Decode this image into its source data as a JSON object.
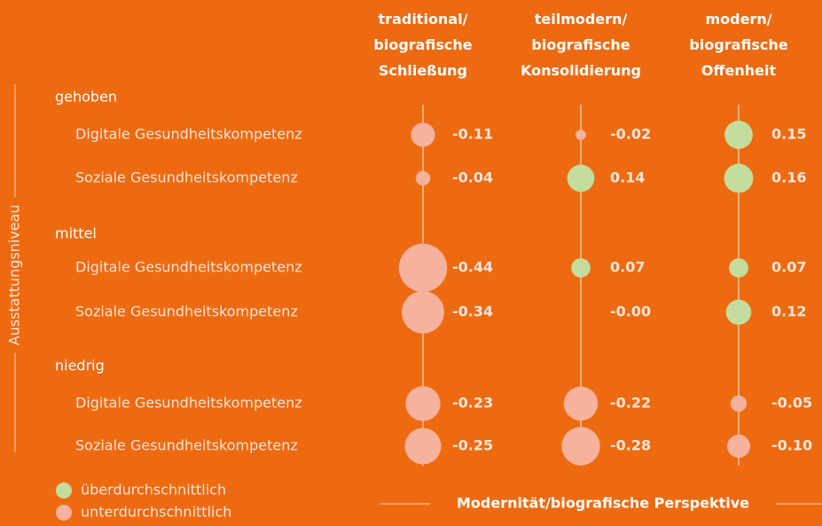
{
  "chart_data": {
    "type": "bubble",
    "xlabel": "Modernität/biografische Perspektive",
    "ylabel": "Ausstattungsniveau",
    "groups": [
      {
        "name": "gehoben",
        "categories": [
          "Digitale Gesundheitskompetenz",
          "Soziale Gesundheitskompetenz"
        ]
      },
      {
        "name": "mittel",
        "categories": [
          "Digitale Gesundheitskompetenz",
          "Soziale Gesundheitskompetenz"
        ]
      },
      {
        "name": "niedrig",
        "categories": [
          "Digitale Gesundheitskompetenz",
          "Soziale Gesundheitskompetenz"
        ]
      }
    ],
    "series": [
      {
        "name": "traditional/ biografische Schließung",
        "values": [
          -0.11,
          -0.04,
          -0.44,
          -0.34,
          -0.23,
          -0.25
        ],
        "value_labels": [
          "-0.11",
          "-0.04",
          "-0.44",
          "-0.34",
          "-0.23",
          "-0.25"
        ]
      },
      {
        "name": "teilmodern/ biografische Konsolidierung",
        "values": [
          -0.02,
          0.14,
          0.07,
          0,
          -0.22,
          -0.28
        ],
        "value_labels": [
          "-0.02",
          "0.14",
          "0.07",
          "-0.00",
          "-0.22",
          "-0.28"
        ]
      },
      {
        "name": "modern/ biografische Offenheit",
        "values": [
          0.15,
          0.16,
          0.07,
          0.12,
          -0.05,
          -0.1
        ],
        "value_labels": [
          "0.15",
          "0.16",
          "0.07",
          "0.12",
          "-0.05",
          "-0.10"
        ]
      }
    ],
    "legend": [
      {
        "name": "überdurchschnittlich",
        "color": "#c4dd9f"
      },
      {
        "name": "unterdurchschnittlich",
        "color": "#f5b29c"
      }
    ]
  }
}
